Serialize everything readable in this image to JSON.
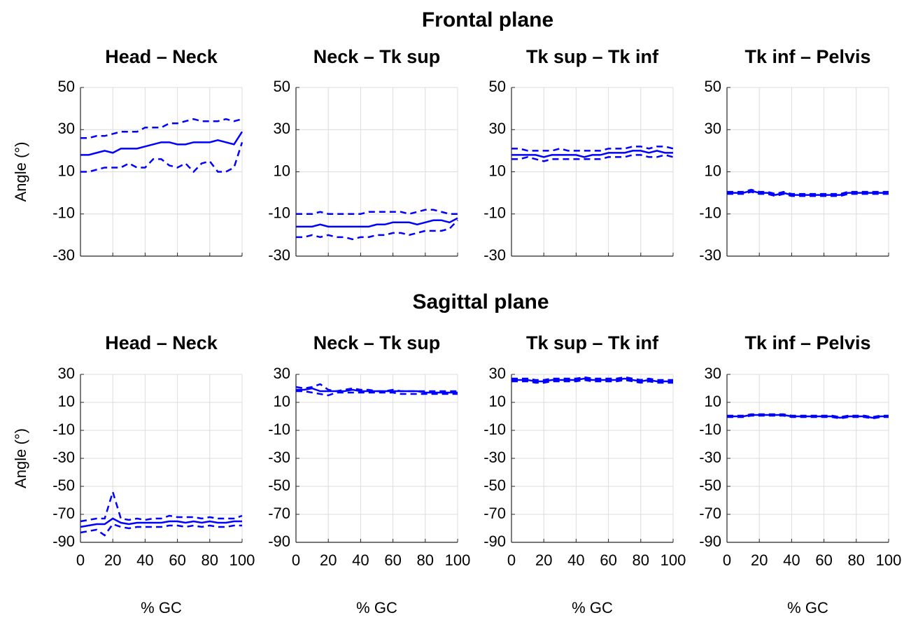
{
  "sections": [
    {
      "title": "Frontal plane"
    },
    {
      "title": "Sagittal plane"
    }
  ],
  "chart_data": [
    {
      "type": "line",
      "title": "Head – Neck",
      "ylabel": "Angle (°)",
      "xlim": [
        0,
        100
      ],
      "ylim": [
        -30,
        50
      ],
      "xticks": [
        0,
        20,
        40,
        60,
        80,
        100
      ],
      "yticks": [
        -30,
        -10,
        10,
        30,
        50
      ],
      "xtick_labels": false,
      "grid": true,
      "x": [
        0,
        5,
        10,
        15,
        20,
        25,
        30,
        35,
        40,
        45,
        50,
        55,
        60,
        65,
        70,
        75,
        80,
        85,
        90,
        95,
        100
      ],
      "series": [
        {
          "color": "#0000ff",
          "style": "solid",
          "values": [
            18,
            18,
            19,
            20,
            19,
            21,
            21,
            21,
            22,
            23,
            24,
            24,
            23,
            23,
            24,
            24,
            24,
            25,
            24,
            23,
            29
          ]
        },
        {
          "color": "#0000ff",
          "style": "dashed",
          "values": [
            26,
            26,
            27,
            27,
            28,
            29,
            29,
            29,
            31,
            31,
            31,
            33,
            33,
            34,
            35,
            34,
            34,
            34,
            35,
            34,
            35
          ]
        },
        {
          "color": "#0000ff",
          "style": "dashed",
          "values": [
            10,
            10,
            11,
            12,
            12,
            12,
            14,
            12,
            12,
            16,
            16,
            13,
            12,
            14,
            10,
            14,
            15,
            10,
            10,
            12,
            24
          ]
        }
      ]
    },
    {
      "type": "line",
      "title": "Neck – Tk sup",
      "xlim": [
        0,
        100
      ],
      "ylim": [
        -30,
        50
      ],
      "xticks": [
        0,
        20,
        40,
        60,
        80,
        100
      ],
      "yticks": [
        -30,
        -10,
        10,
        30,
        50
      ],
      "xtick_labels": false,
      "grid": true,
      "x": [
        0,
        5,
        10,
        15,
        20,
        25,
        30,
        35,
        40,
        45,
        50,
        55,
        60,
        65,
        70,
        75,
        80,
        85,
        90,
        95,
        100
      ],
      "series": [
        {
          "color": "#0000ff",
          "style": "solid",
          "values": [
            -16,
            -16,
            -16,
            -15,
            -16,
            -16,
            -16,
            -16,
            -16,
            -16,
            -15,
            -15,
            -14,
            -14,
            -14,
            -15,
            -14,
            -13,
            -13,
            -14,
            -12
          ]
        },
        {
          "color": "#0000ff",
          "style": "dashed",
          "values": [
            -10,
            -10,
            -10,
            -9,
            -10,
            -10,
            -10,
            -10,
            -10,
            -9,
            -9,
            -9,
            -9,
            -9,
            -10,
            -9,
            -8,
            -8,
            -9,
            -10,
            -10
          ]
        },
        {
          "color": "#0000ff",
          "style": "dashed",
          "values": [
            -21,
            -21,
            -20,
            -21,
            -20,
            -21,
            -21,
            -22,
            -21,
            -21,
            -20,
            -20,
            -19,
            -19,
            -20,
            -19,
            -18,
            -18,
            -18,
            -17,
            -13
          ]
        }
      ]
    },
    {
      "type": "line",
      "title": "Tk sup – Tk inf",
      "xlim": [
        0,
        100
      ],
      "ylim": [
        -30,
        50
      ],
      "xticks": [
        0,
        20,
        40,
        60,
        80,
        100
      ],
      "yticks": [
        -30,
        -10,
        10,
        30,
        50
      ],
      "xtick_labels": false,
      "grid": true,
      "x": [
        0,
        5,
        10,
        15,
        20,
        25,
        30,
        35,
        40,
        45,
        50,
        55,
        60,
        65,
        70,
        75,
        80,
        85,
        90,
        95,
        100
      ],
      "series": [
        {
          "color": "#0000ff",
          "style": "solid",
          "values": [
            18,
            18,
            18,
            18,
            17,
            18,
            18,
            18,
            18,
            17,
            18,
            18,
            19,
            19,
            19,
            20,
            20,
            19,
            20,
            19,
            19
          ]
        },
        {
          "color": "#0000ff",
          "style": "dashed",
          "values": [
            21,
            21,
            20,
            20,
            20,
            20,
            21,
            20,
            20,
            20,
            20,
            20,
            21,
            21,
            21,
            22,
            22,
            21,
            22,
            22,
            21
          ]
        },
        {
          "color": "#0000ff",
          "style": "dashed",
          "values": [
            16,
            16,
            17,
            16,
            15,
            16,
            16,
            16,
            16,
            16,
            16,
            16,
            17,
            17,
            17,
            18,
            18,
            17,
            17,
            18,
            17
          ]
        }
      ]
    },
    {
      "type": "line",
      "title": "Tk inf – Pelvis",
      "xlim": [
        0,
        100
      ],
      "ylim": [
        -30,
        50
      ],
      "xticks": [
        0,
        20,
        40,
        60,
        80,
        100
      ],
      "yticks": [
        -30,
        -10,
        10,
        30,
        50
      ],
      "xtick_labels": false,
      "grid": true,
      "x": [
        0,
        5,
        10,
        15,
        20,
        25,
        30,
        35,
        40,
        45,
        50,
        55,
        60,
        65,
        70,
        75,
        80,
        85,
        90,
        95,
        100
      ],
      "series": [
        {
          "color": "#0000ff",
          "style": "solid",
          "values": [
            0,
            0,
            0,
            1,
            0,
            0,
            -1,
            0,
            -1,
            -1,
            -1,
            -1,
            -1,
            -1,
            -1,
            0,
            0,
            0,
            0,
            0,
            0
          ]
        },
        {
          "color": "#0000ff",
          "style": "dashed",
          "values": [
            0.5,
            0.5,
            0.5,
            1.5,
            0.5,
            0.5,
            -0.5,
            0.5,
            -0.5,
            -0.5,
            -0.5,
            -0.5,
            -0.5,
            -0.5,
            -0.5,
            0.5,
            0.5,
            0.5,
            0.5,
            0.5,
            0.5
          ]
        },
        {
          "color": "#0000ff",
          "style": "dashed",
          "values": [
            -0.5,
            -0.5,
            -0.5,
            0.5,
            -0.5,
            -0.5,
            -1.5,
            -0.5,
            -1.5,
            -1.5,
            -1.5,
            -1.5,
            -1.5,
            -1.5,
            -1.5,
            -0.5,
            -0.5,
            -0.5,
            -0.5,
            -0.5,
            -0.5
          ]
        }
      ]
    },
    {
      "type": "line",
      "title": "Head – Neck",
      "ylabel": "Angle (°)",
      "xlabel": "% GC",
      "xlim": [
        0,
        100
      ],
      "ylim": [
        -90,
        30
      ],
      "xticks": [
        0,
        20,
        40,
        60,
        80,
        100
      ],
      "yticks": [
        -90,
        -70,
        -50,
        -30,
        -10,
        10,
        30
      ],
      "xtick_labels": true,
      "grid": true,
      "x": [
        0,
        5,
        10,
        15,
        20,
        25,
        30,
        35,
        40,
        45,
        50,
        55,
        60,
        65,
        70,
        75,
        80,
        85,
        90,
        95,
        100
      ],
      "series": [
        {
          "color": "#0000ff",
          "style": "solid",
          "values": [
            -79,
            -78,
            -77,
            -77,
            -73,
            -76,
            -77,
            -76,
            -76,
            -76,
            -76,
            -75,
            -75,
            -76,
            -75,
            -76,
            -75,
            -76,
            -76,
            -75,
            -75
          ]
        },
        {
          "color": "#0000ff",
          "style": "dashed",
          "values": [
            -75,
            -74,
            -73,
            -73,
            -54,
            -73,
            -74,
            -73,
            -74,
            -73,
            -73,
            -71,
            -72,
            -72,
            -72,
            -73,
            -72,
            -73,
            -73,
            -73,
            -71
          ]
        },
        {
          "color": "#0000ff",
          "style": "dashed",
          "values": [
            -83,
            -82,
            -81,
            -85,
            -77,
            -79,
            -80,
            -79,
            -79,
            -79,
            -79,
            -78,
            -78,
            -79,
            -78,
            -79,
            -78,
            -79,
            -79,
            -78,
            -78
          ]
        }
      ]
    },
    {
      "type": "line",
      "title": "Neck – Tk sup",
      "xlabel": "% GC",
      "xlim": [
        0,
        100
      ],
      "ylim": [
        -90,
        30
      ],
      "xticks": [
        0,
        20,
        40,
        60,
        80,
        100
      ],
      "yticks": [
        -90,
        -70,
        -50,
        -30,
        -10,
        10,
        30
      ],
      "xtick_labels": true,
      "grid": true,
      "x": [
        0,
        5,
        10,
        15,
        20,
        25,
        30,
        35,
        40,
        45,
        50,
        55,
        60,
        65,
        70,
        75,
        80,
        85,
        90,
        95,
        100
      ],
      "series": [
        {
          "color": "#0000ff",
          "style": "solid",
          "values": [
            19,
            19,
            20,
            18,
            18,
            18,
            18,
            19,
            18,
            18,
            18,
            18,
            18,
            18,
            18,
            18,
            17,
            17,
            17,
            17,
            17
          ]
        },
        {
          "color": "#0000ff",
          "style": "dashed",
          "values": [
            21,
            20,
            21,
            23,
            19,
            18,
            19,
            20,
            19,
            19,
            18,
            18,
            19,
            18,
            18,
            18,
            18,
            18,
            18,
            18,
            18
          ]
        },
        {
          "color": "#0000ff",
          "style": "dashed",
          "values": [
            18,
            18,
            17,
            16,
            15,
            17,
            17,
            17,
            17,
            17,
            17,
            17,
            17,
            16,
            16,
            16,
            16,
            16,
            16,
            16,
            16
          ]
        }
      ]
    },
    {
      "type": "line",
      "title": "Tk sup – Tk inf",
      "xlabel": "% GC",
      "xlim": [
        0,
        100
      ],
      "ylim": [
        -90,
        30
      ],
      "xticks": [
        0,
        20,
        40,
        60,
        80,
        100
      ],
      "yticks": [
        -90,
        -70,
        -50,
        -30,
        -10,
        10,
        30
      ],
      "xtick_labels": true,
      "grid": true,
      "x": [
        0,
        5,
        10,
        15,
        20,
        25,
        30,
        35,
        40,
        45,
        50,
        55,
        60,
        65,
        70,
        75,
        80,
        85,
        90,
        95,
        100
      ],
      "series": [
        {
          "color": "#0000ff",
          "style": "solid",
          "values": [
            26,
            26,
            26,
            25,
            25,
            26,
            26,
            26,
            26,
            27,
            26,
            26,
            26,
            26,
            27,
            26,
            25,
            26,
            25,
            25,
            25
          ]
        },
        {
          "color": "#0000ff",
          "style": "dashed",
          "values": [
            27,
            27,
            27,
            26,
            26,
            27,
            27,
            27,
            27,
            28,
            27,
            27,
            27,
            27,
            28,
            27,
            26,
            27,
            26,
            26,
            26
          ]
        },
        {
          "color": "#0000ff",
          "style": "dashed",
          "values": [
            25,
            25,
            25,
            24,
            24,
            25,
            25,
            25,
            25,
            26,
            25,
            25,
            25,
            25,
            26,
            25,
            24,
            25,
            24,
            24,
            24
          ]
        }
      ]
    },
    {
      "type": "line",
      "title": "Tk inf – Pelvis",
      "xlabel": "% GC",
      "xlim": [
        0,
        100
      ],
      "ylim": [
        -90,
        30
      ],
      "xticks": [
        0,
        20,
        40,
        60,
        80,
        100
      ],
      "yticks": [
        -90,
        -70,
        -50,
        -30,
        -10,
        10,
        30
      ],
      "xtick_labels": true,
      "grid": true,
      "x": [
        0,
        5,
        10,
        15,
        20,
        25,
        30,
        35,
        40,
        45,
        50,
        55,
        60,
        65,
        70,
        75,
        80,
        85,
        90,
        95,
        100
      ],
      "series": [
        {
          "color": "#0000ff",
          "style": "solid",
          "values": [
            0,
            0,
            0,
            1,
            1,
            1,
            1,
            1,
            0,
            0,
            0,
            0,
            0,
            0,
            -1,
            0,
            0,
            0,
            -1,
            0,
            0
          ]
        },
        {
          "color": "#0000ff",
          "style": "dashed",
          "values": [
            0.5,
            0.5,
            0.5,
            1.5,
            1.5,
            1.5,
            1.5,
            1.5,
            0.5,
            0.5,
            0.5,
            0.5,
            0.5,
            0.5,
            -0.5,
            0.5,
            0.5,
            0.5,
            -0.5,
            0.5,
            0.5
          ]
        },
        {
          "color": "#0000ff",
          "style": "dashed",
          "values": [
            -0.5,
            -0.5,
            -0.5,
            0.5,
            0.5,
            0.5,
            0.5,
            0.5,
            -0.5,
            -0.5,
            -0.5,
            -0.5,
            -0.5,
            -0.5,
            -1.5,
            -0.5,
            -0.5,
            -0.5,
            -1.5,
            -0.5,
            -0.5
          ]
        }
      ]
    }
  ]
}
